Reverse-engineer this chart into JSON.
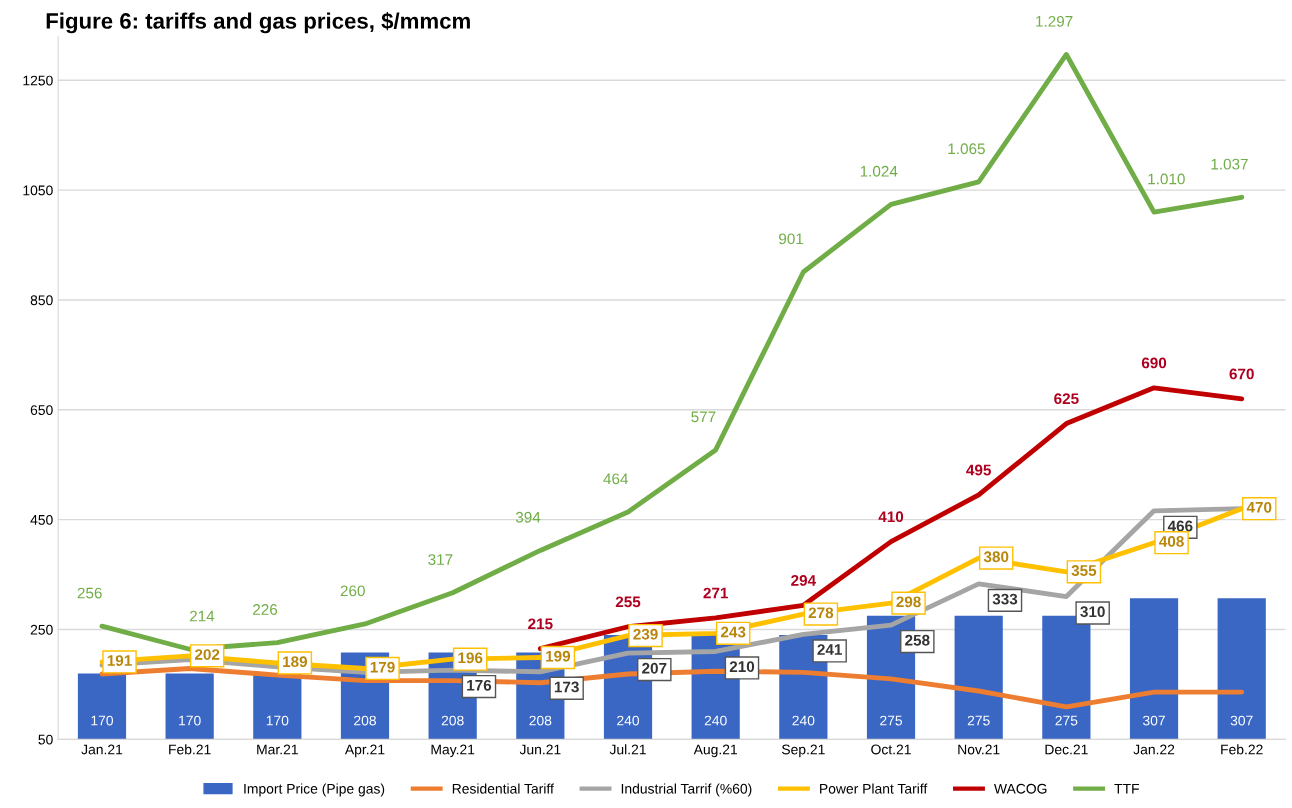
{
  "chart_data": {
    "type": "bar",
    "title": "Figure 6: tariffs and gas prices, $/mmcm",
    "categories": [
      "Jan.21",
      "Feb.21",
      "Mar.21",
      "Apr.21",
      "May.21",
      "Jun.21",
      "Jul.21",
      "Aug.21",
      "Sep.21",
      "Oct.21",
      "Nov.21",
      "Dec.21",
      "Jan.22",
      "Feb.22"
    ],
    "series": [
      {
        "name": "Import Price (Pipe gas)",
        "color": "#3a66c4",
        "values": [
          170,
          170,
          170,
          208,
          208,
          208,
          240,
          240,
          240,
          275,
          275,
          275,
          307,
          307
        ],
        "value_labels": [
          "170",
          "170",
          "170",
          "208",
          "208",
          "208",
          "240",
          "240",
          "240",
          "275",
          "275",
          "275",
          "307",
          "307"
        ]
      },
      {
        "name": "Residential Tariff",
        "type": "line",
        "color": "#ed7d31",
        "values": [
          169,
          179,
          167,
          157,
          157,
          153,
          169,
          174,
          172,
          160,
          138,
          109,
          136,
          136
        ]
      },
      {
        "name": "Industrial Tarrif (%60)",
        "type": "line",
        "color": "#a5a5a5",
        "values": [
          185,
          195,
          182,
          172,
          176,
          173,
          207,
          210,
          241,
          258,
          333,
          310,
          466,
          470
        ],
        "value_labels": [
          null,
          null,
          null,
          null,
          "176",
          "173",
          "207",
          "210",
          "241",
          "258",
          "333",
          "310",
          "466",
          null
        ]
      },
      {
        "name": "Power Plant Tariff",
        "type": "line",
        "color": "#ffc000",
        "values": [
          191,
          202,
          189,
          179,
          196,
          199,
          239,
          243,
          278,
          298,
          380,
          355,
          408,
          470
        ],
        "value_labels": [
          "191",
          "202",
          "189",
          "179",
          "196",
          "199",
          "239",
          "243",
          "278",
          "298",
          "380",
          "355",
          "408",
          "470"
        ]
      },
      {
        "name": "WACOG",
        "type": "line",
        "color": "#c00000",
        "values": [
          null,
          null,
          null,
          null,
          null,
          215,
          255,
          271,
          294,
          410,
          495,
          625,
          690,
          670
        ],
        "value_labels": [
          null,
          null,
          null,
          null,
          null,
          "215",
          "255",
          "271",
          "294",
          "410",
          "495",
          "625",
          "690",
          "670"
        ]
      },
      {
        "name": "TTF",
        "type": "line",
        "color": "#70ad47",
        "values": [
          256,
          214,
          226,
          260,
          317,
          394,
          464,
          577,
          901,
          1024,
          1065,
          1297,
          1010,
          1037
        ],
        "value_labels": [
          "256",
          "214",
          "226",
          "260",
          "317",
          "394",
          "464",
          "577",
          "901",
          "1.024",
          "1.065",
          "1.297",
          "1.010",
          "1.037"
        ]
      }
    ],
    "ylim": [
      50,
      1330
    ],
    "yticks": [
      50,
      250,
      450,
      650,
      850,
      1050,
      1250
    ],
    "grid": "y",
    "legend": "bottom"
  }
}
